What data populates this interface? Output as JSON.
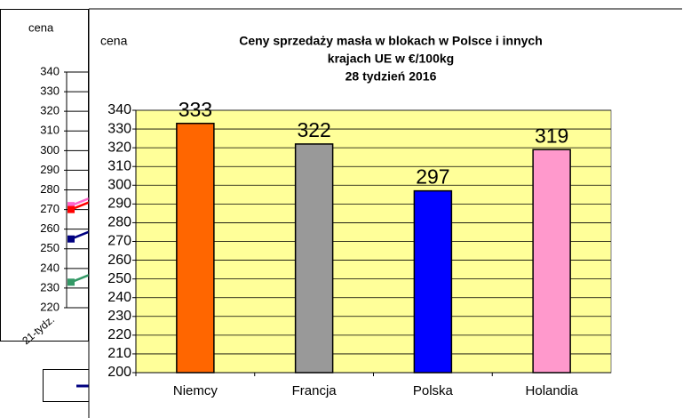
{
  "chart_data": [
    {
      "type": "line",
      "y_label": "cena",
      "categories": [
        "21-tydz."
      ],
      "ylim": [
        220,
        340
      ],
      "yticks": [
        220,
        230,
        240,
        250,
        260,
        270,
        280,
        290,
        300,
        310,
        320,
        330,
        340
      ],
      "series": [
        {
          "color": "#ff66cc",
          "values": [
            272
          ]
        },
        {
          "color": "#ff0000",
          "values": [
            270
          ]
        },
        {
          "color": "#000080",
          "values": [
            255
          ]
        },
        {
          "color": "#339966",
          "values": [
            233
          ]
        }
      ]
    },
    {
      "type": "bar",
      "title": [
        "Ceny sprzedaży masła w blokach w Polsce i  innych",
        "krajach UE w €/100kg",
        "28 tydzień 2016"
      ],
      "y_label": "cena",
      "categories": [
        "Niemcy",
        "Francja",
        "Polska",
        "Holandia"
      ],
      "values": [
        333,
        322,
        297,
        319
      ],
      "colors": [
        "#ff6600",
        "#999999",
        "#0000ff",
        "#ff99cc"
      ],
      "plot_background": "#ffff99",
      "grid": true,
      "ylim": [
        200,
        340
      ],
      "yticks": [
        200,
        210,
        220,
        230,
        240,
        250,
        260,
        270,
        280,
        290,
        300,
        310,
        320,
        330,
        340
      ]
    }
  ]
}
